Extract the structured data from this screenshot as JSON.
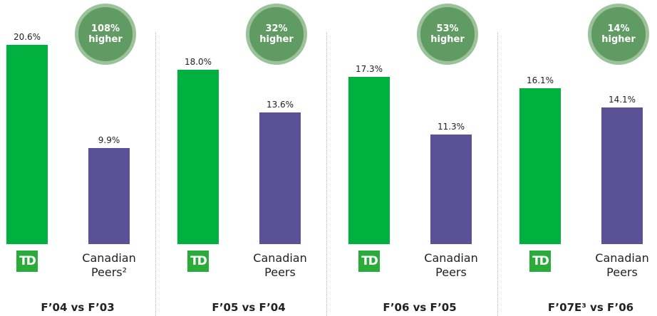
{
  "chart_data": [
    {
      "type": "bar",
      "title": "F’04 vs F’03",
      "annotation": "108% higher",
      "categories": [
        "TD",
        "Canadian Peers²"
      ],
      "values": [
        20.6,
        9.9
      ],
      "value_labels": [
        "20.6%",
        "9.9%"
      ],
      "colors": [
        "#00b140",
        "#5b5196"
      ]
    },
    {
      "type": "bar",
      "title": "F’05 vs F’04",
      "annotation": "32% higher",
      "categories": [
        "TD",
        "Canadian Peers"
      ],
      "values": [
        18.0,
        13.6
      ],
      "value_labels": [
        "18.0%",
        "13.6%"
      ],
      "colors": [
        "#00b140",
        "#5b5196"
      ]
    },
    {
      "type": "bar",
      "title": "F’06 vs F’05",
      "annotation": "53% higher",
      "categories": [
        "TD",
        "Canadian Peers"
      ],
      "values": [
        17.3,
        11.3
      ],
      "value_labels": [
        "17.3%",
        "11.3%"
      ],
      "colors": [
        "#00b140",
        "#5b5196"
      ]
    },
    {
      "type": "bar",
      "title": "F’07E³ vs F’06",
      "annotation": "14% higher",
      "categories": [
        "TD",
        "Canadian Peers"
      ],
      "values": [
        16.1,
        14.1
      ],
      "value_labels": [
        "16.1%",
        "14.1%"
      ],
      "colors": [
        "#00b140",
        "#5b5196"
      ]
    }
  ]
}
